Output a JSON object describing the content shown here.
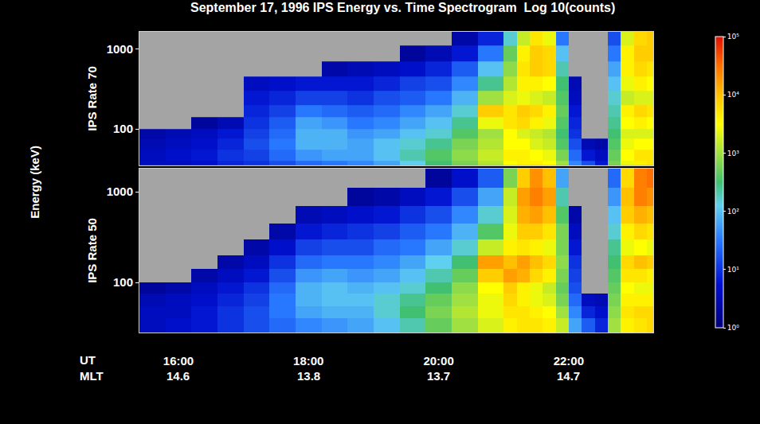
{
  "chart_data": {
    "type": "heatmap",
    "title": "September 17, 1996 IPS Energy vs. Time Spectrogram  Log 10(counts)",
    "ylabel": "Energy (keV)",
    "log": "y",
    "grid": false,
    "xlim": [
      15.4,
      23.3
    ],
    "xticks": [
      {
        "value": 16,
        "label": "16:00"
      },
      {
        "value": 18,
        "label": "18:00"
      },
      {
        "value": 20,
        "label": "20:00"
      },
      {
        "value": 22,
        "label": "22:00"
      }
    ],
    "ut_label": "UT",
    "mlt_row": {
      "label": "MLT",
      "values": [
        14.6,
        13.8,
        13.7,
        14.7
      ]
    },
    "time_edges": [
      15.4,
      15.8,
      16.2,
      16.6,
      17.0,
      17.4,
      17.8,
      18.2,
      18.6,
      19.0,
      19.4,
      19.8,
      20.2,
      20.6,
      21.0,
      21.2,
      21.4,
      21.6,
      21.8,
      22.0,
      22.2,
      22.4,
      22.6,
      22.8,
      23.0,
      23.2,
      23.4
    ],
    "energy_edges": [
      28,
      40,
      55,
      75,
      100,
      140,
      200,
      300,
      450,
      700,
      1100,
      1800
    ],
    "colorbar": {
      "range": [
        0,
        5
      ],
      "ticks": [
        {
          "value": 0,
          "label": "10⁰"
        },
        {
          "value": 1,
          "label": "10¹"
        },
        {
          "value": 2,
          "label": "10²"
        },
        {
          "value": 3,
          "label": "10³"
        },
        {
          "value": 4,
          "label": "10⁴"
        },
        {
          "value": 5,
          "label": "10⁵"
        }
      ]
    },
    "panels": [
      {
        "label": "IPS Rate 70",
        "ylim": [
          35,
          1650
        ],
        "yticks": [
          100,
          1000
        ],
        "cells": [
          [
            0.6,
            0.6,
            0.5,
            0.4,
            null,
            null,
            null,
            null,
            null,
            null,
            null
          ],
          [
            0.6,
            0.7,
            0.6,
            0.5,
            null,
            null,
            null,
            null,
            null,
            null,
            null
          ],
          [
            0.7,
            0.8,
            0.7,
            0.6,
            0.3,
            null,
            null,
            null,
            null,
            null,
            null
          ],
          [
            0.9,
            1.0,
            0.9,
            0.8,
            0.5,
            null,
            null,
            null,
            null,
            null,
            null
          ],
          [
            1.0,
            1.1,
            1.2,
            1.1,
            1.0,
            0.9,
            0.8,
            0.6,
            null,
            null,
            null
          ],
          [
            1.2,
            1.4,
            1.5,
            1.4,
            1.3,
            1.1,
            0.9,
            0.7,
            null,
            null,
            null
          ],
          [
            1.4,
            1.7,
            1.9,
            1.9,
            1.8,
            1.5,
            1.1,
            0.8,
            null,
            null,
            null
          ],
          [
            1.5,
            1.8,
            1.9,
            1.9,
            1.7,
            1.4,
            1.1,
            0.8,
            0.4,
            null,
            null
          ],
          [
            1.6,
            1.8,
            1.8,
            1.7,
            1.5,
            1.3,
            1.0,
            0.8,
            0.5,
            null,
            null
          ],
          [
            1.8,
            2.0,
            2.0,
            1.8,
            1.6,
            1.4,
            1.2,
            0.9,
            0.6,
            null,
            null
          ],
          [
            2.1,
            2.3,
            2.2,
            2.0,
            1.8,
            1.6,
            1.3,
            1.1,
            0.7,
            0.3,
            null
          ],
          [
            2.5,
            2.6,
            2.4,
            2.2,
            2.0,
            1.8,
            1.5,
            1.2,
            0.9,
            0.5,
            null
          ],
          [
            2.8,
            2.9,
            2.8,
            2.6,
            2.4,
            2.2,
            1.9,
            1.6,
            1.3,
            0.8,
            0.4
          ],
          [
            3.1,
            3.2,
            3.1,
            3.0,
            3.4,
            3.9,
            3.0,
            2.4,
            2.0,
            1.5,
            0.9
          ],
          [
            3.5,
            3.6,
            3.5,
            3.5,
            3.7,
            3.7,
            3.3,
            3.1,
            2.9,
            2.7,
            2.2
          ],
          [
            3.6,
            3.6,
            3.5,
            3.3,
            3.8,
            3.9,
            3.4,
            3.6,
            3.7,
            3.6,
            3.2
          ],
          [
            3.6,
            3.5,
            3.3,
            3.2,
            3.6,
            3.8,
            3.3,
            3.6,
            3.9,
            3.9,
            3.7
          ],
          [
            3.5,
            3.4,
            3.2,
            3.1,
            3.4,
            3.6,
            3.2,
            3.5,
            3.8,
            3.8,
            3.4
          ],
          [
            3.0,
            2.8,
            2.6,
            2.5,
            2.6,
            2.7,
            2.6,
            2.5,
            2.3,
            2.0,
            1.5
          ],
          [
            1.6,
            1.4,
            1.2,
            1.0,
            0.9,
            0.8,
            0.6,
            0.5,
            null,
            null,
            null
          ],
          [
            1.2,
            0.8,
            0.5,
            null,
            null,
            null,
            null,
            null,
            null,
            null,
            null
          ],
          [
            0.8,
            0.6,
            0.4,
            null,
            null,
            null,
            null,
            null,
            null,
            null,
            null
          ],
          [
            2.8,
            2.7,
            2.6,
            2.5,
            2.4,
            2.3,
            2.2,
            2.0,
            1.8,
            1.5,
            1.2
          ],
          [
            3.4,
            3.5,
            3.4,
            3.3,
            3.5,
            3.6,
            3.2,
            3.4,
            3.6,
            3.6,
            3.3
          ],
          [
            3.6,
            3.7,
            3.5,
            3.3,
            3.6,
            3.8,
            3.3,
            3.6,
            3.8,
            3.9,
            3.8
          ],
          [
            3.7,
            3.7,
            3.5,
            3.3,
            3.5,
            3.7,
            3.3,
            3.5,
            3.7,
            3.9,
            3.9
          ]
        ]
      },
      {
        "label": "IPS Rate 50",
        "ylim": [
          28,
          1800
        ],
        "yticks": [
          100,
          1000
        ],
        "cells": [
          [
            0.6,
            0.6,
            0.5,
            0.3,
            null,
            null,
            null,
            null,
            null,
            null,
            null
          ],
          [
            0.7,
            0.6,
            0.6,
            0.4,
            null,
            null,
            null,
            null,
            null,
            null,
            null
          ],
          [
            0.8,
            0.8,
            0.7,
            0.6,
            0.4,
            null,
            null,
            null,
            null,
            null,
            null
          ],
          [
            1.0,
            1.0,
            0.9,
            0.8,
            0.6,
            0.4,
            null,
            null,
            null,
            null,
            null
          ],
          [
            1.2,
            1.2,
            1.1,
            1.0,
            0.8,
            0.6,
            0.4,
            null,
            null,
            null,
            null
          ],
          [
            1.4,
            1.5,
            1.5,
            1.4,
            1.2,
            1.0,
            0.7,
            0.4,
            null,
            null,
            null
          ],
          [
            1.6,
            1.8,
            1.9,
            1.9,
            1.7,
            1.4,
            1.1,
            0.8,
            0.5,
            null,
            null
          ],
          [
            1.7,
            1.9,
            2.0,
            2.0,
            1.8,
            1.5,
            1.2,
            0.9,
            0.6,
            null,
            null
          ],
          [
            1.8,
            1.9,
            2.0,
            1.9,
            1.7,
            1.5,
            1.2,
            1.0,
            0.7,
            0.3,
            null
          ],
          [
            2.0,
            2.2,
            2.2,
            2.0,
            1.8,
            1.6,
            1.4,
            1.1,
            0.8,
            0.4,
            null
          ],
          [
            2.3,
            2.5,
            2.4,
            2.2,
            2.0,
            1.8,
            1.5,
            1.3,
            1.0,
            0.6,
            null
          ],
          [
            2.7,
            2.8,
            2.7,
            2.5,
            2.3,
            2.1,
            1.8,
            1.5,
            1.2,
            0.8,
            0.3
          ],
          [
            3.0,
            3.1,
            3.0,
            2.9,
            2.7,
            2.5,
            2.2,
            1.9,
            1.6,
            1.2,
            0.7
          ],
          [
            3.3,
            3.4,
            3.4,
            3.5,
            3.9,
            4.2,
            3.2,
            2.6,
            2.2,
            1.8,
            1.3
          ],
          [
            3.6,
            3.7,
            3.8,
            3.9,
            4.2,
            4.0,
            3.6,
            3.4,
            3.3,
            3.2,
            2.8
          ],
          [
            3.7,
            3.7,
            3.6,
            3.6,
            4.1,
            4.2,
            3.7,
            3.9,
            4.1,
            4.2,
            3.9
          ],
          [
            3.7,
            3.6,
            3.4,
            3.4,
            3.8,
            4.0,
            3.6,
            3.9,
            4.2,
            4.4,
            4.3
          ],
          [
            3.6,
            3.5,
            3.3,
            3.2,
            3.6,
            3.8,
            3.4,
            3.7,
            4.0,
            4.2,
            4.0
          ],
          [
            3.2,
            3.0,
            2.8,
            2.7,
            2.8,
            2.9,
            2.8,
            2.8,
            2.6,
            2.3,
            1.8
          ],
          [
            1.8,
            1.6,
            1.4,
            1.2,
            1.1,
            1.0,
            0.8,
            0.6,
            0.4,
            null,
            null
          ],
          [
            1.3,
            0.9,
            0.6,
            null,
            null,
            null,
            null,
            null,
            null,
            null,
            null
          ],
          [
            0.9,
            0.7,
            0.5,
            null,
            null,
            null,
            null,
            null,
            null,
            null,
            null
          ],
          [
            3.0,
            2.9,
            2.8,
            2.7,
            2.6,
            2.5,
            2.4,
            2.2,
            2.0,
            1.7,
            1.4
          ],
          [
            3.6,
            3.7,
            3.6,
            3.5,
            3.7,
            3.8,
            3.4,
            3.6,
            3.9,
            4.0,
            3.8
          ],
          [
            3.7,
            3.8,
            3.6,
            3.4,
            3.7,
            4.0,
            3.5,
            3.8,
            4.1,
            4.4,
            4.4
          ],
          [
            3.8,
            3.8,
            3.6,
            3.4,
            3.6,
            3.9,
            3.4,
            3.7,
            4.0,
            4.3,
            4.5
          ]
        ]
      }
    ]
  }
}
